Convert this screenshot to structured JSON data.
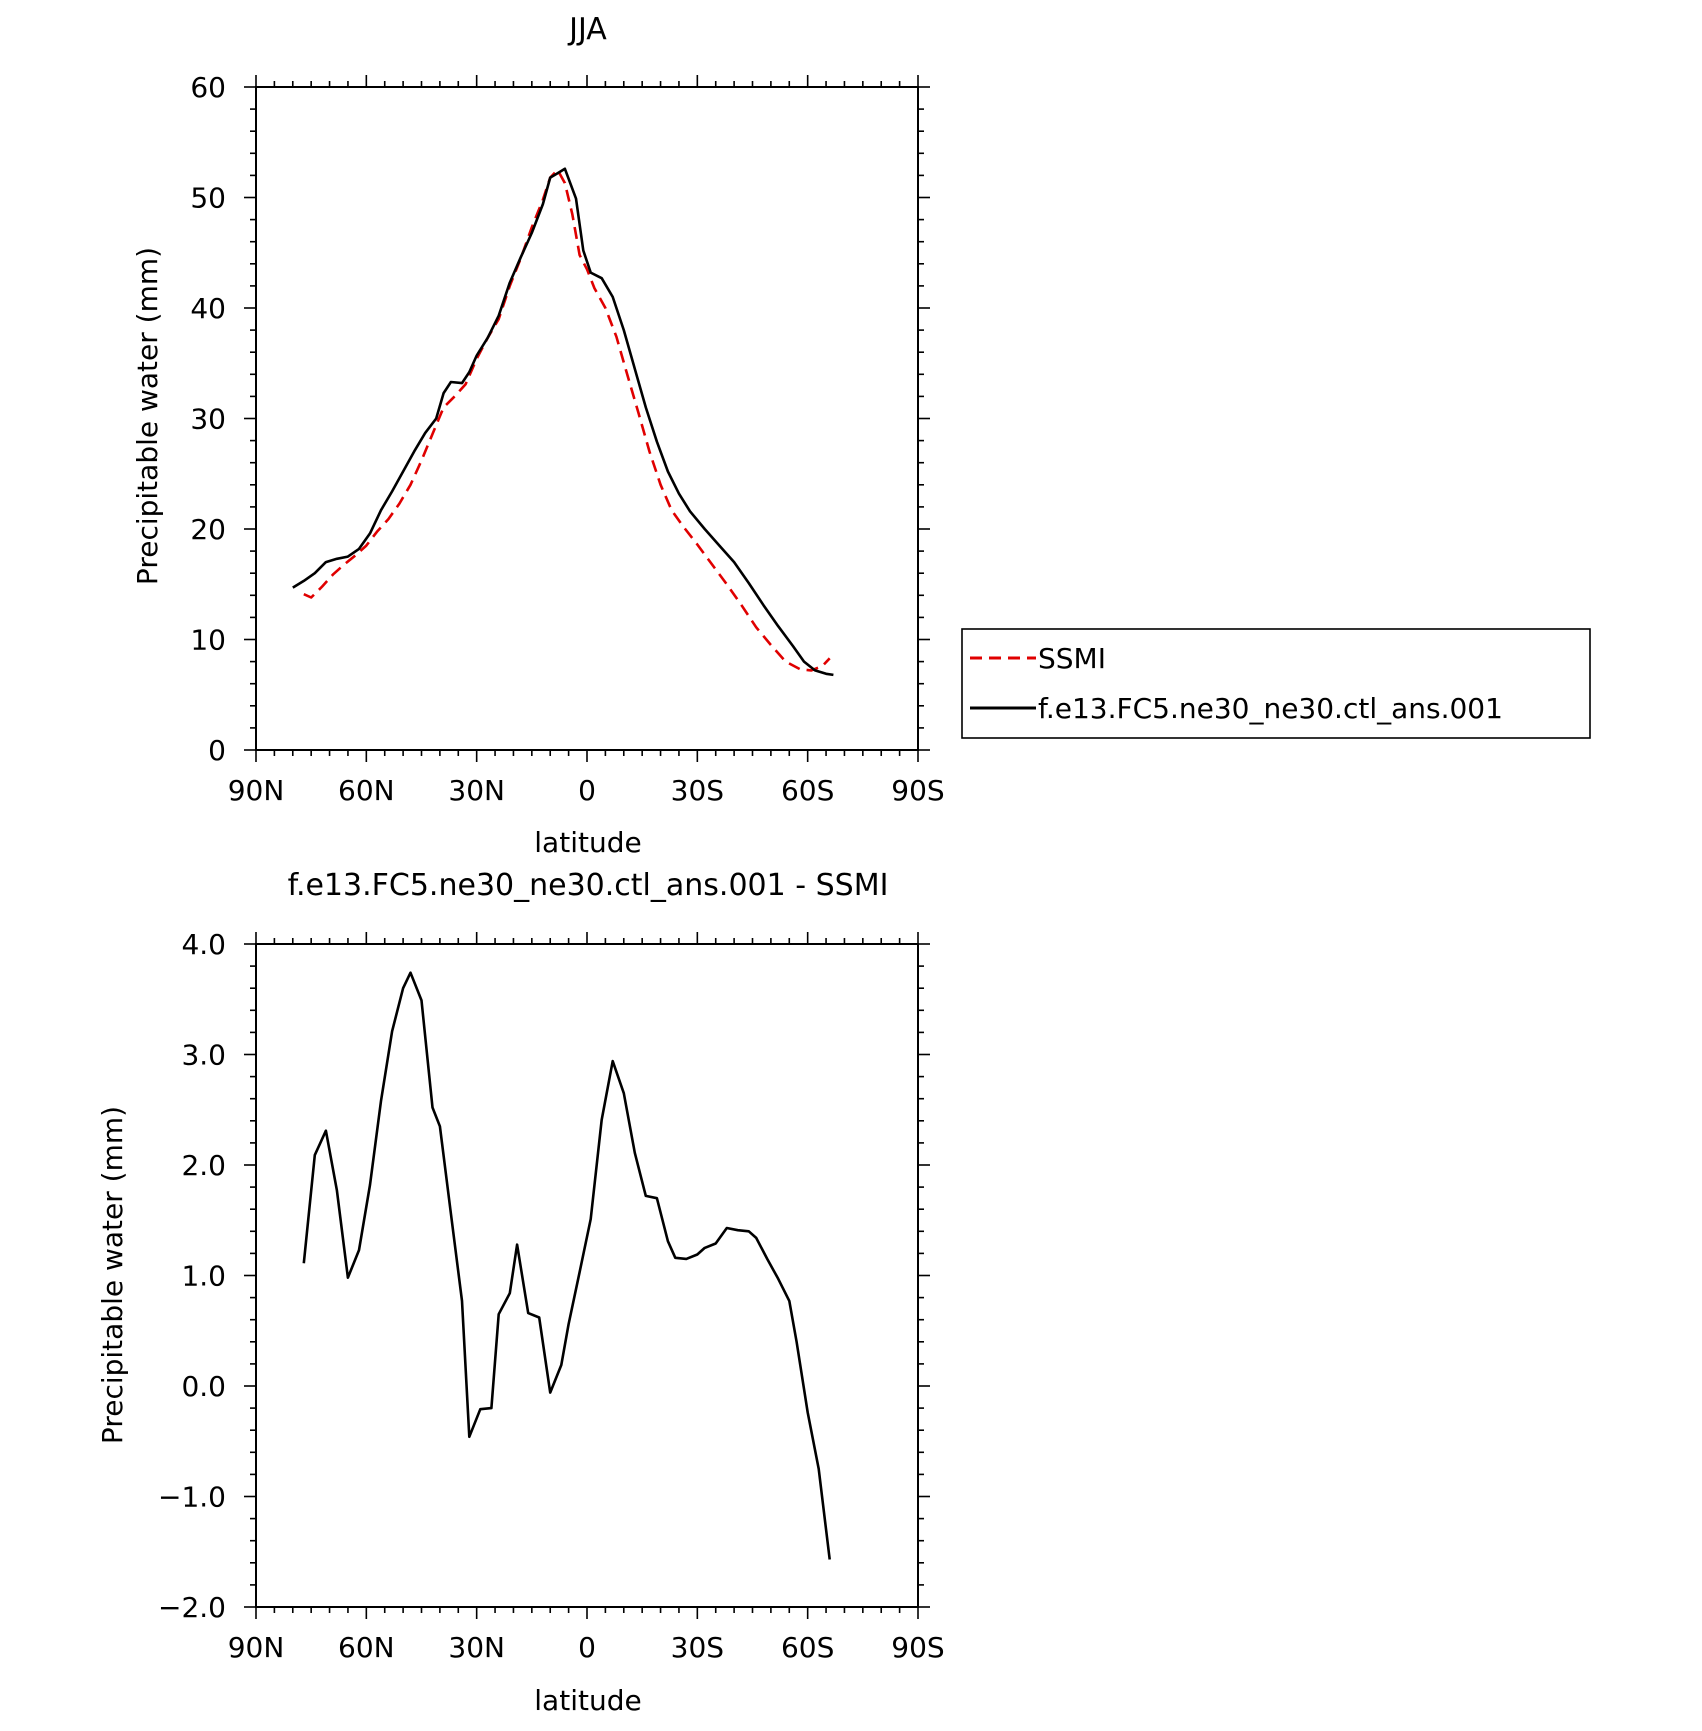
{
  "chart_data": [
    {
      "type": "line",
      "title": "JJA",
      "xlabel": "latitude",
      "ylabel": "Precipitable water (mm)",
      "xlim": [
        90,
        -90
      ],
      "ylim": [
        0,
        60
      ],
      "x_ticks": [
        90,
        60,
        30,
        0,
        -30,
        -60,
        -90
      ],
      "x_tick_labels": [
        "90N",
        "60N",
        "30N",
        "0",
        "30S",
        "60S",
        "90S"
      ],
      "y_ticks": [
        0,
        10,
        20,
        30,
        40,
        50,
        60
      ],
      "y_tick_labels": [
        "0",
        "10",
        "20",
        "30",
        "40",
        "50",
        "60"
      ],
      "grid": false,
      "legend_position": "right-outside",
      "series": [
        {
          "name": "SSMI",
          "color": "#e00000",
          "style": "dashed",
          "points": [
            [
              77,
              14.1
            ],
            [
              75,
              13.8
            ],
            [
              72,
              14.8
            ],
            [
              69,
              15.9
            ],
            [
              66,
              16.8
            ],
            [
              63,
              17.6
            ],
            [
              60,
              18.5
            ],
            [
              57,
              19.8
            ],
            [
              54,
              20.9
            ],
            [
              51,
              22.3
            ],
            [
              48,
              24.0
            ],
            [
              45,
              26.2
            ],
            [
              42,
              28.6
            ],
            [
              39,
              31.0
            ],
            [
              36,
              32.0
            ],
            [
              33,
              33.1
            ],
            [
              30,
              35.4
            ],
            [
              27,
              37.3
            ],
            [
              24,
              39.0
            ],
            [
              21,
              42.0
            ],
            [
              18,
              44.5
            ],
            [
              15,
              47.3
            ],
            [
              12,
              49.8
            ],
            [
              10,
              51.8
            ],
            [
              8,
              52.5
            ],
            [
              6,
              51.3
            ],
            [
              4,
              48.5
            ],
            [
              2,
              44.8
            ],
            [
              0,
              43.5
            ],
            [
              -2,
              41.8
            ],
            [
              -5,
              40.0
            ],
            [
              -8,
              37.4
            ],
            [
              -11,
              33.9
            ],
            [
              -14,
              30.5
            ],
            [
              -17,
              27.0
            ],
            [
              -20,
              24.0
            ],
            [
              -23,
              21.7
            ],
            [
              -26,
              20.3
            ],
            [
              -30,
              18.6
            ],
            [
              -34,
              16.8
            ],
            [
              -38,
              15.0
            ],
            [
              -42,
              13.1
            ],
            [
              -46,
              11.1
            ],
            [
              -50,
              9.5
            ],
            [
              -54,
              8.0
            ],
            [
              -58,
              7.3
            ],
            [
              -61,
              7.2
            ],
            [
              -64,
              7.6
            ],
            [
              -66,
              8.3
            ]
          ]
        },
        {
          "name": "f.e13.FC5.ne30_ne30.ctl_ans.001",
          "color": "#000000",
          "style": "solid",
          "points": [
            [
              80,
              14.7
            ],
            [
              77,
              15.3
            ],
            [
              74,
              16.0
            ],
            [
              71,
              17.0
            ],
            [
              68,
              17.3
            ],
            [
              65,
              17.5
            ],
            [
              62,
              18.2
            ],
            [
              59,
              19.6
            ],
            [
              56,
              21.7
            ],
            [
              53,
              23.4
            ],
            [
              50,
              25.2
            ],
            [
              47,
              27.0
            ],
            [
              44,
              28.7
            ],
            [
              41,
              30.0
            ],
            [
              39,
              32.3
            ],
            [
              37,
              33.3
            ],
            [
              34,
              33.2
            ],
            [
              32,
              34.2
            ],
            [
              30,
              35.7
            ],
            [
              27,
              37.3
            ],
            [
              24,
              39.3
            ],
            [
              21,
              42.3
            ],
            [
              18,
              44.6
            ],
            [
              15,
              46.8
            ],
            [
              12,
              49.4
            ],
            [
              10,
              51.8
            ],
            [
              8,
              52.2
            ],
            [
              6,
              52.6
            ],
            [
              3,
              49.9
            ],
            [
              1,
              45.2
            ],
            [
              -1,
              43.2
            ],
            [
              -4,
              42.7
            ],
            [
              -7,
              41.0
            ],
            [
              -10,
              38.0
            ],
            [
              -13,
              34.5
            ],
            [
              -16,
              31.0
            ],
            [
              -19,
              27.9
            ],
            [
              -22,
              25.2
            ],
            [
              -25,
              23.2
            ],
            [
              -28,
              21.6
            ],
            [
              -32,
              20.0
            ],
            [
              -36,
              18.5
            ],
            [
              -40,
              17.0
            ],
            [
              -44,
              15.1
            ],
            [
              -48,
              13.1
            ],
            [
              -52,
              11.2
            ],
            [
              -56,
              9.4
            ],
            [
              -59,
              8.0
            ],
            [
              -62,
              7.2
            ],
            [
              -65,
              6.9
            ],
            [
              -67,
              6.8
            ]
          ]
        }
      ]
    },
    {
      "type": "line",
      "title": "f.e13.FC5.ne30_ne30.ctl_ans.001 - SSMI",
      "xlabel": "latitude",
      "ylabel": "Precipitable water (mm)",
      "xlim": [
        90,
        -90
      ],
      "ylim": [
        -2.0,
        4.0
      ],
      "x_ticks": [
        90,
        60,
        30,
        0,
        -30,
        -60,
        -90
      ],
      "x_tick_labels": [
        "90N",
        "60N",
        "30N",
        "0",
        "30S",
        "60S",
        "90S"
      ],
      "y_ticks": [
        -2.0,
        -1.0,
        0.0,
        1.0,
        2.0,
        3.0,
        4.0
      ],
      "y_tick_labels": [
        "−2.0",
        "−1.0",
        "0.0",
        "1.0",
        "2.0",
        "3.0",
        "4.0"
      ],
      "grid": false,
      "series": [
        {
          "color": "#000000",
          "style": "solid",
          "points": [
            [
              77,
              1.11
            ],
            [
              74,
              2.09
            ],
            [
              71,
              2.31
            ],
            [
              68,
              1.77
            ],
            [
              65,
              0.98
            ],
            [
              62,
              1.23
            ],
            [
              59,
              1.82
            ],
            [
              56,
              2.58
            ],
            [
              53,
              3.21
            ],
            [
              50,
              3.6
            ],
            [
              48,
              3.74
            ],
            [
              45,
              3.49
            ],
            [
              42,
              2.52
            ],
            [
              40,
              2.35
            ],
            [
              37,
              1.56
            ],
            [
              34,
              0.77
            ],
            [
              32,
              -0.46
            ],
            [
              29,
              -0.21
            ],
            [
              26,
              -0.2
            ],
            [
              24,
              0.65
            ],
            [
              21,
              0.84
            ],
            [
              19,
              1.28
            ],
            [
              16,
              0.66
            ],
            [
              13,
              0.62
            ],
            [
              10,
              -0.06
            ],
            [
              7,
              0.19
            ],
            [
              5,
              0.56
            ],
            [
              2,
              1.03
            ],
            [
              -1,
              1.51
            ],
            [
              -4,
              2.41
            ],
            [
              -7,
              2.94
            ],
            [
              -10,
              2.65
            ],
            [
              -13,
              2.11
            ],
            [
              -16,
              1.72
            ],
            [
              -19,
              1.7
            ],
            [
              -22,
              1.31
            ],
            [
              -24,
              1.16
            ],
            [
              -27,
              1.15
            ],
            [
              -30,
              1.19
            ],
            [
              -32,
              1.25
            ],
            [
              -35,
              1.29
            ],
            [
              -38,
              1.43
            ],
            [
              -41,
              1.41
            ],
            [
              -44,
              1.4
            ],
            [
              -46,
              1.34
            ],
            [
              -49,
              1.15
            ],
            [
              -52,
              0.97
            ],
            [
              -55,
              0.77
            ],
            [
              -57,
              0.4
            ],
            [
              -60,
              -0.24
            ],
            [
              -63,
              -0.75
            ],
            [
              -66,
              -1.57
            ]
          ]
        }
      ]
    }
  ]
}
